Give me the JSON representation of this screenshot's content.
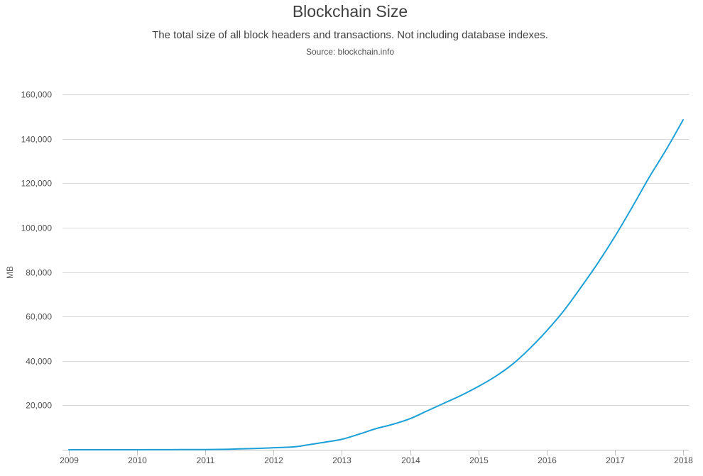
{
  "chart_data": {
    "type": "line",
    "title": "Blockchain Size",
    "subtitle": "The total size of all block headers and transactions. Not including database indexes.",
    "source": "Source: blockchain.info",
    "xlabel": "",
    "ylabel": "MB",
    "x_ticks": [
      "2009",
      "2010",
      "2011",
      "2012",
      "2013",
      "2014",
      "2015",
      "2016",
      "2017",
      "2018"
    ],
    "y_ticks": [
      "20,000",
      "40,000",
      "60,000",
      "80,000",
      "100,000",
      "120,000",
      "140,000",
      "160,000"
    ],
    "xlim": [
      2009,
      2018
    ],
    "ylim": [
      0,
      160000
    ],
    "grid": "horizontal",
    "line_color": "#1ba1d8",
    "grid_color": "#d8d8d8",
    "series": [
      {
        "x": [
          2009.0,
          2009.5,
          2010.0,
          2010.5,
          2011.0,
          2011.3,
          2011.5,
          2011.75,
          2012.0,
          2012.3,
          2012.5,
          2012.75,
          2013.0,
          2013.25,
          2013.5,
          2013.75,
          2014.0,
          2014.25,
          2014.5,
          2014.75,
          2015.0,
          2015.25,
          2015.5,
          2015.75,
          2016.0,
          2016.25,
          2016.5,
          2016.75,
          2017.0,
          2017.25,
          2017.5,
          2017.75,
          2018.0
        ],
        "values": [
          0,
          0,
          20,
          50,
          100,
          200,
          400,
          600,
          900,
          1300,
          2200,
          3400,
          4700,
          7000,
          9500,
          11500,
          14000,
          17500,
          21000,
          24500,
          28500,
          33000,
          38500,
          45500,
          53500,
          62500,
          73000,
          84000,
          96000,
          109000,
          122500,
          135000,
          148500
        ]
      }
    ]
  }
}
